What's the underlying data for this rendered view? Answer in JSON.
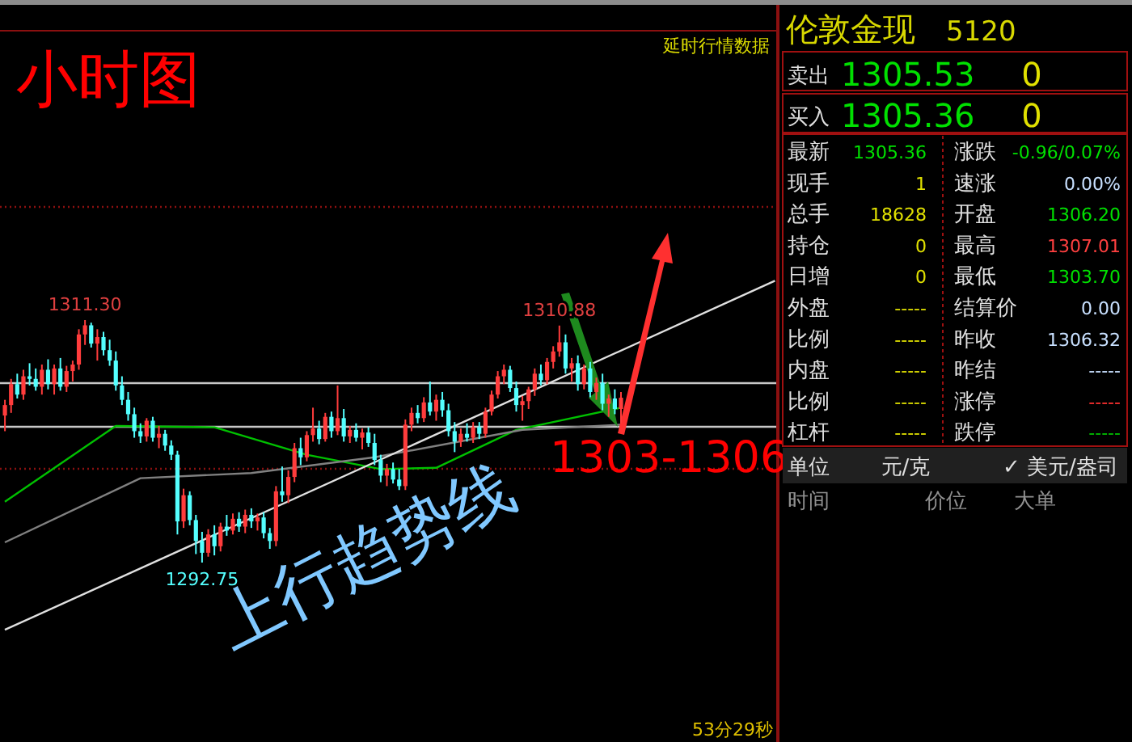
{
  "chart_data": [
    {
      "type": "candlestick",
      "title": "小时图",
      "tick_labels": false,
      "colors": [
        "#ff3c3c",
        "#ff3c3c",
        "#54ffff",
        "#ff3c3c",
        "#54ffff",
        "#54ffff",
        "#ff3c3c",
        "#54ffff",
        "#ff3c3c",
        "#54ffff",
        "#ff3c3c",
        "#ff3c3c",
        "#ff3c3c",
        "#ff3c3c",
        "#54ffff",
        "#ff3c3c",
        "#54ffff",
        "#54ffff",
        "#54ffff",
        "#54ffff",
        "#54ffff",
        "#54ffff",
        "#54ffff",
        "#ff3c3c",
        "#54ffff",
        "#ff3c3c",
        "#54ffff",
        "#54ffff",
        "#54ffff",
        "#ff3c3c",
        "#54ffff",
        "#54ffff",
        "#54ffff",
        "#ff3c3c",
        "#54ffff",
        "#ff3c3c",
        "#54ffff",
        "#ff3c3c",
        "#54ffff",
        "#ff3c3c",
        "#54ffff",
        "#ff3c3c",
        "#54ffff",
        "#54ffff",
        "#ff3c3c",
        "#54ffff",
        "#ff3c3c",
        "#ff3c3c",
        "#54ffff",
        "#ff3c3c",
        "#ff3c3c",
        "#54ffff",
        "#ff3c3c",
        "#54ffff",
        "#ff3c3c",
        "#54ffff",
        "#ff3c3c",
        "#54ffff",
        "#ff3c3c",
        "#54ffff",
        "#54ffff",
        "#54ffff",
        "#ff3c3c",
        "#54ffff",
        "#54ffff",
        "#ff3c3c",
        "#ff3c3c",
        "#54ffff",
        "#ff3c3c",
        "#54ffff",
        "#ff3c3c",
        "#54ffff",
        "#54ffff",
        "#54ffff",
        "#ff3c3c",
        "#54ffff",
        "#ff3c3c",
        "#54ffff",
        "#ff3c3c",
        "#ff3c3c",
        "#ff3c3c",
        "#ff3c3c",
        "#54ffff",
        "#54ffff",
        "#ff3c3c",
        "#ff3c3c",
        "#ff3c3c",
        "#54ffff",
        "#ff3c3c",
        "#ff3c3c",
        "#ff3c3c",
        "#54ffff",
        "#ff3c3c",
        "#54ffff",
        "#ff3c3c",
        "#54ffff",
        "#ff3c3c",
        "#54ffff",
        "#ff3c3c",
        "#54ffff",
        "#ff3c3c",
        null,
        null,
        null,
        null,
        null,
        null,
        null,
        null,
        null,
        null,
        null,
        null,
        null,
        null,
        null,
        null,
        null,
        null,
        null,
        null,
        null,
        null,
        null,
        null,
        null
      ],
      "categories": [
        null,
        null,
        null,
        null,
        null,
        null,
        null,
        null,
        null,
        null,
        null,
        null,
        null,
        null,
        null,
        null,
        null,
        null,
        null,
        null,
        null,
        null,
        null,
        null,
        null,
        null,
        null,
        null,
        null,
        null,
        null,
        null,
        null,
        null,
        null,
        null,
        null,
        null,
        null,
        null,
        null,
        null,
        null,
        null,
        null,
        null,
        null,
        null,
        null,
        null,
        null,
        null,
        null,
        null,
        null,
        null,
        null,
        null,
        null,
        null,
        null,
        null,
        null,
        null,
        null,
        null,
        null,
        null,
        null,
        null,
        null,
        null,
        null,
        null,
        null,
        null,
        null,
        null,
        null,
        null,
        null,
        null,
        null,
        null,
        null,
        null,
        null,
        null,
        null,
        null,
        null,
        null,
        null,
        null,
        null,
        null,
        null,
        null,
        null,
        null,
        null,
        null,
        null,
        null,
        null,
        null,
        null,
        null,
        null,
        null,
        null,
        null,
        null,
        null,
        null,
        null,
        null,
        null,
        null,
        null,
        null,
        null,
        null,
        null,
        null,
        null
      ],
      "ohlc": [
        [
          1304.0,
          1305.2,
          1302.8,
          1304.8
        ],
        [
          1304.8,
          1306.8,
          1304.2,
          1306.4
        ],
        [
          1306.4,
          1307.2,
          1305.3,
          1305.6
        ],
        [
          1305.6,
          1307.5,
          1305.2,
          1307.0
        ],
        [
          1307.0,
          1308.0,
          1306.3,
          1306.8
        ],
        [
          1306.8,
          1307.6,
          1305.9,
          1306.2
        ],
        [
          1306.2,
          1307.9,
          1305.6,
          1307.5
        ],
        [
          1307.5,
          1308.3,
          1306.0,
          1306.4
        ],
        [
          1306.4,
          1307.9,
          1305.6,
          1307.6
        ],
        [
          1307.6,
          1308.4,
          1305.9,
          1306.2
        ],
        [
          1306.2,
          1307.8,
          1305.8,
          1307.4
        ],
        [
          1307.4,
          1308.2,
          1306.6,
          1307.9
        ],
        [
          1307.9,
          1310.6,
          1307.5,
          1310.2
        ],
        [
          1310.2,
          1311.3,
          1309.4,
          1310.9
        ],
        [
          1310.9,
          1311.1,
          1309.2,
          1309.5
        ],
        [
          1309.5,
          1310.6,
          1308.2,
          1310.0
        ],
        [
          1310.0,
          1310.4,
          1308.6,
          1309.0
        ],
        [
          1309.0,
          1309.8,
          1307.8,
          1308.2
        ],
        [
          1308.2,
          1308.9,
          1305.9,
          1306.3
        ],
        [
          1306.3,
          1307.0,
          1304.8,
          1305.2
        ],
        [
          1305.2,
          1305.8,
          1303.6,
          1304.1
        ],
        [
          1304.1,
          1304.6,
          1302.3,
          1302.8
        ],
        [
          1302.8,
          1303.4,
          1301.9,
          1302.4
        ],
        [
          1302.4,
          1303.8,
          1302.0,
          1303.6
        ],
        [
          1303.6,
          1303.9,
          1302.0,
          1302.3
        ],
        [
          1302.3,
          1303.2,
          1301.5,
          1302.6
        ],
        [
          1302.6,
          1302.9,
          1301.3,
          1301.7
        ],
        [
          1301.7,
          1302.1,
          1300.6,
          1301.0
        ],
        [
          1301.0,
          1301.3,
          1294.9,
          1295.9
        ],
        [
          1295.9,
          1298.4,
          1295.4,
          1297.9
        ],
        [
          1297.9,
          1298.2,
          1295.6,
          1296.0
        ],
        [
          1296.0,
          1296.4,
          1293.4,
          1294.4
        ],
        [
          1294.4,
          1295.1,
          1292.75,
          1293.5
        ],
        [
          1293.5,
          1295.3,
          1293.2,
          1294.9
        ],
        [
          1294.9,
          1295.6,
          1293.3,
          1294.0
        ],
        [
          1294.0,
          1295.8,
          1293.6,
          1295.5
        ],
        [
          1295.5,
          1296.4,
          1294.8,
          1295.2
        ],
        [
          1295.2,
          1296.5,
          1294.9,
          1296.1
        ],
        [
          1296.1,
          1296.6,
          1295.1,
          1295.5
        ],
        [
          1295.5,
          1296.8,
          1295.0,
          1296.4
        ],
        [
          1296.4,
          1296.9,
          1295.4,
          1295.9
        ],
        [
          1295.9,
          1296.5,
          1295.2,
          1296.2
        ],
        [
          1296.2,
          1296.6,
          1294.6,
          1295.0
        ],
        [
          1295.0,
          1295.4,
          1293.8,
          1294.4
        ],
        [
          1294.4,
          1298.6,
          1294.0,
          1298.2
        ],
        [
          1298.2,
          1300.1,
          1297.4,
          1297.9
        ],
        [
          1297.9,
          1299.8,
          1297.3,
          1299.3
        ],
        [
          1299.3,
          1301.9,
          1298.9,
          1301.5
        ],
        [
          1301.5,
          1302.3,
          1300.2,
          1300.8
        ],
        [
          1300.8,
          1302.8,
          1300.5,
          1302.5
        ],
        [
          1302.5,
          1304.6,
          1302.0,
          1303.0
        ],
        [
          1303.0,
          1303.6,
          1301.8,
          1302.2
        ],
        [
          1302.2,
          1304.2,
          1302.0,
          1303.9
        ],
        [
          1303.9,
          1304.3,
          1302.3,
          1302.8
        ],
        [
          1302.8,
          1306.3,
          1302.5,
          1303.8
        ],
        [
          1303.8,
          1304.5,
          1302.0,
          1302.4
        ],
        [
          1302.4,
          1303.2,
          1301.9,
          1302.9
        ],
        [
          1302.9,
          1303.4,
          1302.0,
          1302.3
        ],
        [
          1302.3,
          1303.0,
          1301.4,
          1302.7
        ],
        [
          1302.7,
          1303.1,
          1301.6,
          1301.9
        ],
        [
          1301.9,
          1302.6,
          1300.2,
          1300.6
        ],
        [
          1300.6,
          1301.0,
          1298.9,
          1299.4
        ],
        [
          1299.4,
          1300.3,
          1298.6,
          1299.9
        ],
        [
          1299.9,
          1300.4,
          1298.8,
          1299.1
        ],
        [
          1299.1,
          1299.9,
          1298.3,
          1298.6
        ],
        [
          1298.6,
          1303.7,
          1298.3,
          1303.3
        ],
        [
          1303.3,
          1304.6,
          1302.8,
          1304.2
        ],
        [
          1304.2,
          1304.8,
          1303.4,
          1303.8
        ],
        [
          1303.8,
          1305.4,
          1303.5,
          1305.0
        ],
        [
          1305.0,
          1306.6,
          1304.0,
          1304.3
        ],
        [
          1304.3,
          1305.6,
          1303.6,
          1305.2
        ],
        [
          1305.2,
          1305.8,
          1303.9,
          1304.4
        ],
        [
          1304.4,
          1304.9,
          1302.4,
          1302.8
        ],
        [
          1302.8,
          1303.5,
          1301.2,
          1302.0
        ],
        [
          1302.0,
          1303.0,
          1301.6,
          1302.6
        ],
        [
          1302.6,
          1303.4,
          1302.0,
          1302.3
        ],
        [
          1302.3,
          1303.5,
          1301.9,
          1303.1
        ],
        [
          1303.1,
          1303.5,
          1302.2,
          1302.6
        ],
        [
          1302.6,
          1304.6,
          1302.3,
          1304.3
        ],
        [
          1304.3,
          1305.9,
          1304.0,
          1305.6
        ],
        [
          1305.6,
          1307.4,
          1305.3,
          1307.0
        ],
        [
          1307.0,
          1307.9,
          1306.4,
          1307.5
        ],
        [
          1307.5,
          1307.8,
          1305.8,
          1306.1
        ],
        [
          1306.1,
          1306.6,
          1304.3,
          1304.8
        ],
        [
          1304.8,
          1305.5,
          1303.6,
          1305.1
        ],
        [
          1305.1,
          1306.2,
          1304.5,
          1306.0
        ],
        [
          1306.0,
          1307.6,
          1305.5,
          1307.2
        ],
        [
          1307.2,
          1307.9,
          1306.3,
          1306.7
        ],
        [
          1306.7,
          1308.4,
          1306.4,
          1308.1
        ],
        [
          1308.1,
          1309.3,
          1307.6,
          1308.9
        ],
        [
          1308.9,
          1310.88,
          1308.5,
          1309.6
        ],
        [
          1309.6,
          1310.2,
          1307.2,
          1307.6
        ],
        [
          1307.6,
          1308.4,
          1306.6,
          1308.0
        ],
        [
          1308.0,
          1308.6,
          1305.9,
          1306.4
        ],
        [
          1306.4,
          1307.9,
          1306.0,
          1307.6
        ],
        [
          1307.6,
          1308.1,
          1305.4,
          1305.8
        ],
        [
          1305.8,
          1306.9,
          1305.2,
          1306.5
        ],
        [
          1306.5,
          1307.2,
          1304.4,
          1304.9
        ],
        [
          1304.9,
          1305.6,
          1303.9,
          1305.3
        ],
        [
          1305.3,
          1306.0,
          1304.1,
          1304.5
        ],
        [
          1304.5,
          1305.8,
          1303.4,
          1305.36
        ],
        null,
        null,
        null,
        null,
        null,
        null,
        null,
        null,
        null,
        null,
        null,
        null,
        null,
        null,
        null,
        null,
        null,
        null,
        null,
        null,
        null,
        null,
        null,
        null,
        null
      ],
      "series": [
        {
          "type": "line",
          "color": "#00c000",
          "values": [
            1297.4,
            null,
            null,
            null,
            null,
            null,
            null,
            null,
            null,
            null,
            null,
            null,
            null,
            null,
            null,
            null,
            null,
            null,
            1303.2,
            null,
            null,
            null,
            null,
            null,
            null,
            null,
            null,
            null,
            null,
            null,
            null,
            null,
            null,
            null,
            1303.1,
            null,
            null,
            null,
            null,
            null,
            null,
            null,
            null,
            null,
            null,
            null,
            null,
            null,
            null,
            1301.0,
            null,
            null,
            null,
            null,
            null,
            null,
            null,
            null,
            null,
            null,
            null,
            1299.9,
            null,
            null,
            null,
            null,
            null,
            null,
            null,
            null,
            1300.0,
            null,
            null,
            null,
            null,
            null,
            null,
            null,
            null,
            null,
            null,
            null,
            null,
            1302.9,
            null,
            null,
            null,
            null,
            null,
            null,
            null,
            null,
            null,
            null,
            null,
            null,
            null,
            null,
            null,
            null,
            1304.6,
            null,
            null,
            null,
            null,
            null,
            null,
            null,
            null,
            null,
            null,
            null,
            null,
            null,
            null,
            null,
            null,
            null,
            null,
            null,
            null,
            null,
            null,
            null,
            null,
            null
          ]
        },
        {
          "type": "line",
          "color": "#808080",
          "values": [
            1294.3,
            null,
            null,
            null,
            null,
            null,
            null,
            null,
            null,
            null,
            null,
            null,
            null,
            null,
            null,
            null,
            null,
            null,
            null,
            null,
            null,
            null,
            1299.2,
            null,
            null,
            null,
            null,
            null,
            null,
            null,
            null,
            null,
            null,
            null,
            null,
            null,
            null,
            null,
            null,
            null,
            1299.6,
            null,
            null,
            null,
            null,
            null,
            null,
            null,
            null,
            null,
            null,
            null,
            null,
            null,
            null,
            null,
            null,
            null,
            null,
            null,
            1300.8,
            null,
            null,
            null,
            null,
            null,
            null,
            null,
            null,
            null,
            null,
            null,
            null,
            null,
            null,
            null,
            null,
            null,
            null,
            null,
            null,
            null,
            null,
            null,
            1302.9,
            null,
            null,
            null,
            null,
            null,
            null,
            null,
            null,
            null,
            null,
            null,
            null,
            null,
            null,
            null,
            1303.3,
            null,
            null,
            null,
            null,
            null,
            null,
            null,
            null,
            null,
            null,
            null,
            null,
            null,
            null,
            null,
            null,
            null,
            null,
            null,
            null,
            null,
            null,
            null,
            null,
            null
          ]
        },
        {
          "type": "line",
          "color": "#e0e0e0",
          "values": [
            1287.6,
            null,
            null,
            null,
            null,
            null,
            null,
            null,
            null,
            null,
            null,
            null,
            null,
            null,
            null,
            null,
            null,
            null,
            null,
            null,
            null,
            null,
            null,
            null,
            null,
            null,
            null,
            null,
            null,
            null,
            null,
            null,
            null,
            null,
            null,
            null,
            null,
            null,
            null,
            null,
            null,
            null,
            null,
            null,
            null,
            null,
            null,
            null,
            null,
            null,
            null,
            null,
            null,
            null,
            null,
            null,
            null,
            null,
            null,
            null,
            null,
            null,
            null,
            null,
            null,
            null,
            null,
            null,
            null,
            null,
            null,
            null,
            null,
            null,
            null,
            null,
            null,
            null,
            null,
            null,
            null,
            null,
            null,
            null,
            null,
            null,
            null,
            null,
            null,
            null,
            null,
            null,
            null,
            null,
            null,
            null,
            null,
            null,
            null,
            null,
            null,
            null,
            null,
            null,
            null,
            null,
            null,
            null,
            null,
            null,
            null,
            null,
            null,
            null,
            null,
            null,
            null,
            null,
            null,
            null,
            null,
            null,
            null,
            null,
            null,
            1314.3
          ]
        }
      ],
      "ref_lines": [
        {
          "axis": "y",
          "value": 1306.48,
          "color": "#c8c8c8"
        },
        {
          "axis": "y",
          "value": 1303.14,
          "color": "#c8c8c8"
        },
        {
          "axis": "y",
          "value": 1319.96,
          "color": "#8b1010",
          "line_style": "dotted"
        },
        {
          "axis": "y",
          "value": 1299.92,
          "color": "#8b1010",
          "line_style": "dotted"
        }
      ],
      "annotations": [
        {
          "text": "1311.30",
          "y": 1311.3
        },
        {
          "text": "1292.75",
          "y": 1292.75
        },
        {
          "text": "1310.88",
          "y": 1310.88
        },
        "1303-1306",
        "上行趋势线",
        "延时行情数据",
        "53分29秒"
      ]
    },
    {
      "type": "other",
      "title": "伦敦金现",
      "subtitle": "5120",
      "annotations": [
        "卖出",
        "1305.53",
        "0",
        "买入",
        "1305.36",
        "0",
        "最新",
        "1305.36",
        "涨跌",
        "-0.96/0.07%",
        "现手",
        "1",
        "速涨",
        "0.00%",
        "总手",
        "18628",
        "开盘",
        "1306.20",
        "持仓",
        "0",
        "最高",
        "1307.01",
        "日增",
        "0",
        "最低",
        "1303.70",
        "外盘",
        "-----",
        "结算价",
        "0.00",
        "比例",
        "-----",
        "昨收",
        "1306.32",
        "内盘",
        "-----",
        "昨结",
        "-----",
        "比例",
        "-----",
        "涨停",
        "-----",
        "杠杆",
        "-----",
        "跌停",
        "-----",
        "单位",
        "元/克",
        "✓ 美元/盎司",
        "时间",
        "价位",
        "大单"
      ],
      "colors": [
        "#e0e0e0",
        "#00e000",
        "#e0e000",
        "#e0e0e0",
        "#00e000",
        "#e0e000",
        "#e0e0e0",
        "#00e000",
        "#e0e0e0",
        "#00e000",
        "#e0e0e0",
        "#e0e000",
        "#e0e0e0",
        "#c8e0ff",
        "#e0e0e0",
        "#e0e000",
        "#e0e0e0",
        "#00e000",
        "#e0e0e0",
        "#e0e000",
        "#e0e0e0",
        "#ff4040",
        "#e0e0e0",
        "#e0e000",
        "#e0e0e0",
        "#00e000",
        "#e0e0e0",
        "#e0e000",
        "#e0e0e0",
        "#c8e0ff",
        "#e0e0e0",
        "#e0e000",
        "#e0e0e0",
        "#c8e0ff",
        "#e0e0e0",
        "#e0e000",
        "#e0e0e0",
        "#c8e0ff",
        "#e0e0e0",
        "#e0e000",
        "#e0e0e0",
        "#ff3030",
        "#e0e0e0",
        "#e0e000",
        "#e0e0e0",
        "#00c000",
        "#e0e0e0",
        "#e0e0e0",
        "#e0e0e0",
        "#909090",
        "#909090",
        "#909090"
      ]
    }
  ]
}
